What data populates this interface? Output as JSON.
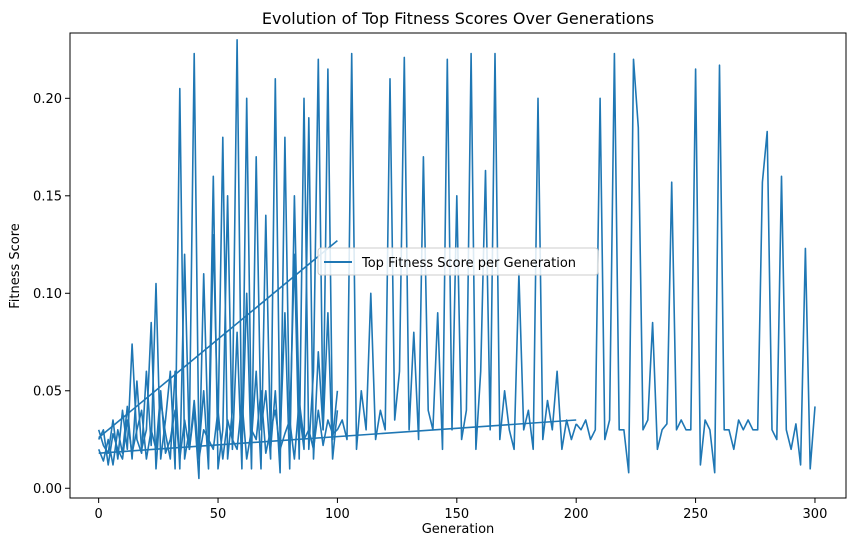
{
  "chart_data": {
    "type": "line",
    "title": "Evolution of Top Fitness Scores Over Generations",
    "xlabel": "Generation",
    "ylabel": "Fitness Score",
    "xlim": [
      -12,
      313
    ],
    "ylim": [
      -0.005,
      0.2335
    ],
    "xticks": [
      0,
      50,
      100,
      150,
      200,
      250,
      300
    ],
    "xtick_labels": [
      "0",
      "50",
      "100",
      "150",
      "200",
      "250",
      "300"
    ],
    "yticks": [
      0.0,
      0.05,
      0.1,
      0.15,
      0.2
    ],
    "ytick_labels": [
      "0.00",
      "0.05",
      "0.10",
      "0.15",
      "0.20"
    ],
    "grid": false,
    "legend_position": "center",
    "color": "#1f77b4",
    "series": [
      {
        "name": "Top Fitness Score per Generation",
        "segments": [
          {
            "x": [
              0,
              2,
              4,
              6,
              8,
              10,
              12,
              14,
              16,
              18,
              20,
              22,
              24,
              26,
              28,
              30,
              32,
              34,
              36,
              38,
              40,
              42,
              44,
              46,
              48,
              50,
              52,
              54,
              56,
              58,
              60,
              62,
              64,
              66,
              68,
              70,
              72,
              74,
              76,
              78,
              80,
              82,
              84,
              86,
              88,
              90,
              92,
              94,
              96,
              98,
              100
            ],
            "y": [
              0.02,
              0.014,
              0.025,
              0.012,
              0.03,
              0.018,
              0.042,
              0.015,
              0.055,
              0.02,
              0.03,
              0.085,
              0.01,
              0.045,
              0.028,
              0.015,
              0.06,
              0.01,
              0.12,
              0.02,
              0.04,
              0.005,
              0.11,
              0.02,
              0.16,
              0.01,
              0.03,
              0.15,
              0.02,
              0.08,
              0.01,
              0.2,
              0.025,
              0.06,
              0.01,
              0.14,
              0.02,
              0.05,
              0.008,
              0.18,
              0.03,
              0.12,
              0.015,
              0.2,
              0.02,
              0.06,
              0.22,
              0.03,
              0.09,
              0.015,
              0.04
            ]
          },
          {
            "x": [
              0,
              2,
              4,
              6,
              8,
              10,
              12,
              14,
              16,
              18,
              20,
              22,
              24,
              26,
              28,
              30,
              32,
              34,
              36,
              38,
              40,
              42,
              44,
              46,
              48,
              50,
              52,
              54,
              56,
              58,
              60,
              62,
              64,
              66,
              68,
              70,
              72,
              74,
              76,
              78,
              80,
              82,
              84,
              86,
              88,
              90,
              92,
              94,
              96,
              98,
              100
            ],
            "y": [
              0.03,
              0.022,
              0.018,
              0.035,
              0.015,
              0.04,
              0.02,
              0.074,
              0.025,
              0.018,
              0.06,
              0.022,
              0.105,
              0.015,
              0.035,
              0.06,
              0.01,
              0.205,
              0.015,
              0.03,
              0.223,
              0.02,
              0.05,
              0.01,
              0.13,
              0.03,
              0.18,
              0.015,
              0.04,
              0.23,
              0.02,
              0.1,
              0.01,
              0.17,
              0.03,
              0.05,
              0.015,
              0.21,
              0.025,
              0.09,
              0.01,
              0.15,
              0.04,
              0.02,
              0.19,
              0.015,
              0.07,
              0.03,
              0.215,
              0.025,
              0.05
            ]
          },
          {
            "x": [
              0,
              2,
              4,
              6,
              8,
              10,
              12,
              14,
              16,
              18,
              20,
              22,
              24,
              26,
              28,
              30,
              32,
              34,
              36,
              38,
              40,
              42,
              44,
              46,
              48,
              50,
              52,
              54,
              56,
              58,
              60,
              62,
              64,
              66,
              68,
              70,
              72,
              74,
              76,
              78,
              80,
              82,
              84,
              86,
              88,
              90,
              92,
              94,
              96,
              98,
              100
            ],
            "y": [
              0.025,
              0.03,
              0.012,
              0.028,
              0.02,
              0.015,
              0.035,
              0.018,
              0.03,
              0.04,
              0.015,
              0.03,
              0.02,
              0.05,
              0.018,
              0.025,
              0.04,
              0.015,
              0.035,
              0.02,
              0.045,
              0.015,
              0.03,
              0.025,
              0.02,
              0.04,
              0.015,
              0.035,
              0.025,
              0.02,
              0.045,
              0.015,
              0.03,
              0.025,
              0.05,
              0.018,
              0.03,
              0.04,
              0.02,
              0.028,
              0.035,
              0.015,
              0.045,
              0.025,
              0.03,
              0.02,
              0.04,
              0.022,
              0.035,
              0.028,
              0.03
            ]
          },
          {
            "x": [
              0,
              100
            ],
            "y": [
              0.026,
              0.127
            ]
          },
          {
            "x": [
              0,
              200
            ],
            "y": [
              0.018,
              0.035
            ]
          },
          {
            "x": [
              100,
              102,
              104,
              106,
              108,
              110,
              112,
              114,
              116,
              118,
              120,
              122,
              124,
              126,
              128,
              130,
              132,
              134,
              136,
              138,
              140,
              142,
              144,
              146,
              148,
              150,
              152,
              154,
              156,
              158,
              160,
              162,
              164,
              166,
              168,
              170,
              172,
              174,
              176,
              178,
              180,
              182,
              184,
              186,
              188,
              190,
              192,
              194,
              196,
              198,
              200
            ],
            "y": [
              0.03,
              0.035,
              0.025,
              0.223,
              0.02,
              0.05,
              0.03,
              0.1,
              0.025,
              0.04,
              0.03,
              0.21,
              0.035,
              0.06,
              0.221,
              0.03,
              0.08,
              0.025,
              0.17,
              0.04,
              0.03,
              0.09,
              0.02,
              0.22,
              0.03,
              0.15,
              0.025,
              0.04,
              0.223,
              0.02,
              0.06,
              0.163,
              0.03,
              0.223,
              0.025,
              0.05,
              0.03,
              0.02,
              0.11,
              0.03,
              0.04,
              0.02,
              0.2,
              0.025,
              0.045,
              0.03,
              0.06,
              0.02,
              0.035,
              0.025,
              0.033
            ]
          },
          {
            "x": [
              200,
              202,
              204,
              206,
              208,
              210,
              212,
              214,
              216,
              218,
              220,
              222,
              224,
              226,
              228,
              230,
              232,
              234,
              236,
              238,
              240,
              242,
              244,
              246,
              248,
              250,
              252,
              254,
              256,
              258,
              260,
              262,
              264,
              266,
              268,
              270,
              272,
              274,
              276,
              278,
              280,
              282,
              284,
              286,
              288,
              290,
              292,
              294,
              296,
              298,
              300
            ],
            "y": [
              0.033,
              0.03,
              0.035,
              0.025,
              0.03,
              0.2,
              0.025,
              0.035,
              0.223,
              0.03,
              0.03,
              0.008,
              0.22,
              0.185,
              0.03,
              0.035,
              0.085,
              0.02,
              0.03,
              0.033,
              0.157,
              0.03,
              0.035,
              0.03,
              0.03,
              0.215,
              0.012,
              0.035,
              0.03,
              0.008,
              0.217,
              0.03,
              0.03,
              0.02,
              0.035,
              0.03,
              0.035,
              0.03,
              0.03,
              0.157,
              0.183,
              0.03,
              0.025,
              0.16,
              0.03,
              0.02,
              0.033,
              0.012,
              0.123,
              0.01,
              0.042
            ]
          }
        ]
      }
    ]
  }
}
